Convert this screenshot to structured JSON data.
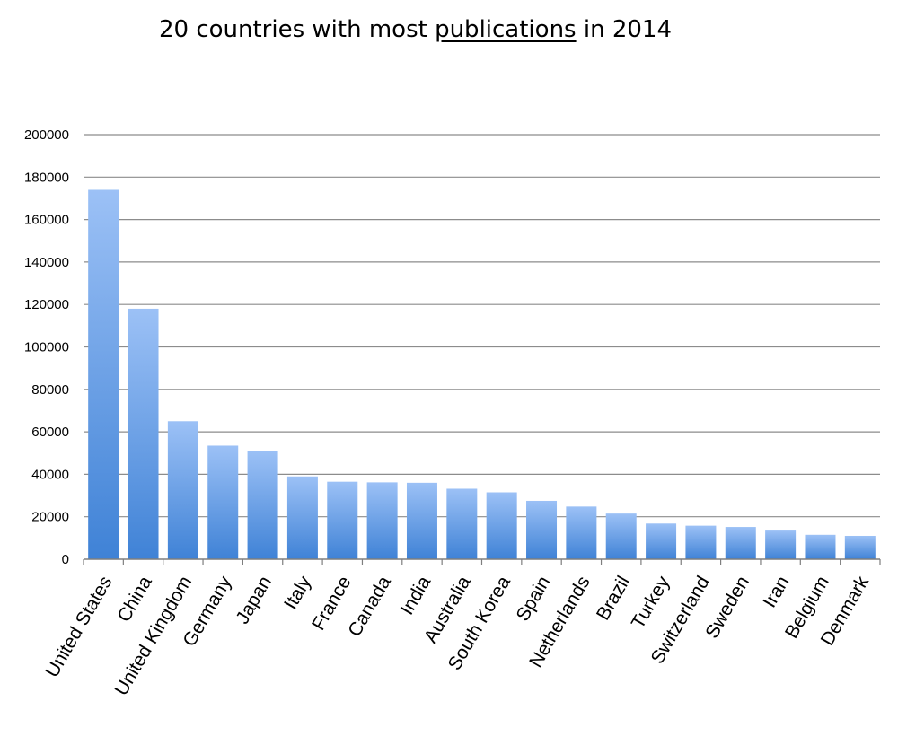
{
  "title_parts": {
    "before": "20 countries with most ",
    "underlined": "publications",
    "after": " in 2014"
  },
  "chart_data": {
    "type": "bar",
    "title": "20 countries with most publications in 2014",
    "xlabel": "",
    "ylabel": "",
    "categories": [
      "United States",
      "China",
      "United Kingdom",
      "Germany",
      "Japan",
      "Italy",
      "France",
      "Canada",
      "India",
      "Australia",
      "South Korea",
      "Spain",
      "Netherlands",
      "Brazil",
      "Turkey",
      "Switzerland",
      "Sweden",
      "Iran",
      "Belgium",
      "Denmark"
    ],
    "values": [
      174000,
      118000,
      65000,
      53500,
      51000,
      39000,
      36500,
      36200,
      36000,
      33200,
      31500,
      27500,
      24800,
      21500,
      16800,
      15800,
      15200,
      13500,
      11500,
      11000
    ],
    "ylim": [
      0,
      200000
    ],
    "yticks": [
      0,
      20000,
      40000,
      60000,
      80000,
      100000,
      120000,
      140000,
      160000,
      180000,
      200000
    ],
    "grid": true,
    "legend": "none",
    "colors": {
      "bar_top": "#9cc1f6",
      "bar_bottom": "#3f82d6",
      "grid": "#8c8c8c",
      "axis": "#7f7f7f"
    }
  }
}
